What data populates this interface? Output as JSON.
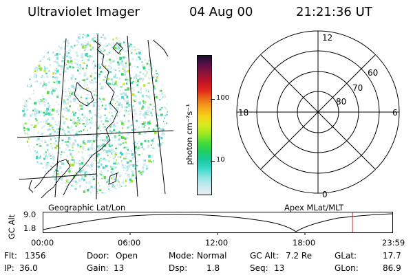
{
  "header": {
    "instrument": "Ultraviolet Imager",
    "date": "04 Aug 00",
    "time": "21:21:36 UT"
  },
  "colorbar": {
    "label": "photon cm⁻²s⁻¹",
    "ticks": [
      {
        "label": "100",
        "value": 100
      },
      {
        "label": "10",
        "value": 10
      }
    ],
    "colors": [
      "#e9eef2",
      "#c7e9ef",
      "#8fe3e3",
      "#39d9c8",
      "#19c99f",
      "#1fcf5f",
      "#48dc37",
      "#9ee81f",
      "#d8ea20",
      "#f5d21a",
      "#f6a51a",
      "#ee6d18",
      "#e0271d",
      "#c21227",
      "#8e1338",
      "#5a0f4a",
      "#1a0e2b"
    ]
  },
  "left_panel": {
    "label": "Geographic Lat/Lon"
  },
  "polar_panel": {
    "label": "Apex MLat/MLT",
    "mlt_labels": {
      "top": "12",
      "bottom": "0",
      "left": "18",
      "right": "6"
    },
    "lat_labels": [
      "60",
      "70",
      "80"
    ]
  },
  "altitude_plot": {
    "ylabel": "GC Alt",
    "yticks": [
      "9.0",
      "1.8"
    ],
    "xticks": [
      "00:00",
      "06:00",
      "12:00",
      "18:00",
      "23:59"
    ]
  },
  "status": {
    "flt_label": "Flt:",
    "flt_value": "1356",
    "ip_label": "IP:",
    "ip_value": "36.0",
    "door_label": "Door:",
    "door_value": "Open",
    "gain_label": "Gain:",
    "gain_value": "13",
    "mode_label": "Mode:",
    "mode_value": "Normal",
    "dsp_label": "Dsp:",
    "dsp_value": "1.8",
    "gcalt_label": "GC Alt:",
    "gcalt_value": "7.2 Re",
    "seq_label": "Seq:",
    "seq_value": "13",
    "glat_label": "GLat:",
    "glat_value": "17.7",
    "glon_label": "GLon:",
    "glon_value": "86.9"
  }
}
